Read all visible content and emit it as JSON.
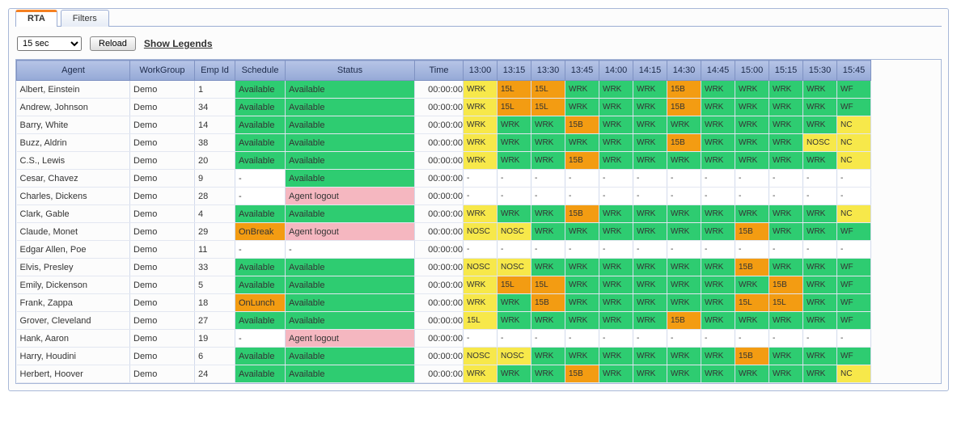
{
  "tabs": {
    "rta": "RTA",
    "filters": "Filters"
  },
  "toolbar": {
    "refresh_value": "15 sec",
    "reload": "Reload",
    "legends": "Show Legends"
  },
  "colors": {
    "green": "#2ecc71",
    "yellow": "#f7e84a",
    "orange": "#f39c12",
    "pink": "#f5b7c0",
    "white": "#ffffff"
  },
  "columns": {
    "agent": "Agent",
    "workgroup": "WorkGroup",
    "emp": "Emp Id",
    "schedule": "Schedule",
    "status": "Status",
    "time": "Time",
    "slots": [
      "13:00",
      "13:15",
      "13:30",
      "13:45",
      "14:00",
      "14:15",
      "14:30",
      "14:45",
      "15:00",
      "15:15",
      "15:30",
      "15:45"
    ]
  },
  "status_map": {
    "avail": {
      "text": "Available",
      "cls": "c-green"
    },
    "break": {
      "text": "OnBreak",
      "cls": "c-orange"
    },
    "lunch": {
      "text": "OnLunch",
      "cls": "c-orange"
    },
    "logout": {
      "text": "Agent logout",
      "cls": "c-pink"
    },
    "dash": {
      "text": "-",
      "cls": "c-white"
    }
  },
  "slot_map": {
    "W": {
      "text": "WRK",
      "cls": "c-green"
    },
    "Wy": {
      "text": "WRK",
      "cls": "c-yellow"
    },
    "Wp": {
      "text": "WF",
      "cls": "c-green"
    },
    "L": {
      "text": "15L",
      "cls": "c-orange"
    },
    "Ly": {
      "text": "15L",
      "cls": "c-yellow"
    },
    "B": {
      "text": "15B",
      "cls": "c-orange"
    },
    "N": {
      "text": "NOSC",
      "cls": "c-yellow"
    },
    "NC": {
      "text": "NC",
      "cls": "c-yellow"
    },
    "D": {
      "text": "-",
      "cls": "c-white"
    }
  },
  "rows": [
    {
      "agent": "Albert, Einstein",
      "wg": "Demo",
      "emp": "1",
      "sched": "avail",
      "status": "avail",
      "time": "00:00:00",
      "slots": [
        "Wy",
        "L",
        "L",
        "W",
        "W",
        "W",
        "B",
        "W",
        "W",
        "W",
        "W",
        "Wp"
      ]
    },
    {
      "agent": "Andrew, Johnson",
      "wg": "Demo",
      "emp": "34",
      "sched": "avail",
      "status": "avail",
      "time": "00:00:00",
      "slots": [
        "Wy",
        "L",
        "L",
        "W",
        "W",
        "W",
        "B",
        "W",
        "W",
        "W",
        "W",
        "Wp"
      ]
    },
    {
      "agent": "Barry, White",
      "wg": "Demo",
      "emp": "14",
      "sched": "avail",
      "status": "avail",
      "time": "00:00:00",
      "slots": [
        "Wy",
        "W",
        "W",
        "B",
        "W",
        "W",
        "W",
        "W",
        "W",
        "W",
        "W",
        "NC"
      ]
    },
    {
      "agent": "Buzz, Aldrin",
      "wg": "Demo",
      "emp": "38",
      "sched": "avail",
      "status": "avail",
      "time": "00:00:00",
      "slots": [
        "Wy",
        "W",
        "W",
        "W",
        "W",
        "W",
        "B",
        "W",
        "W",
        "W",
        "N",
        "NC"
      ]
    },
    {
      "agent": "C.S., Lewis",
      "wg": "Demo",
      "emp": "20",
      "sched": "avail",
      "status": "avail",
      "time": "00:00:00",
      "slots": [
        "Wy",
        "W",
        "W",
        "B",
        "W",
        "W",
        "W",
        "W",
        "W",
        "W",
        "W",
        "NC"
      ]
    },
    {
      "agent": "Cesar, Chavez",
      "wg": "Demo",
      "emp": "9",
      "sched": "dash",
      "status": "avail",
      "time": "00:00:00",
      "slots": [
        "D",
        "D",
        "D",
        "D",
        "D",
        "D",
        "D",
        "D",
        "D",
        "D",
        "D",
        "D"
      ]
    },
    {
      "agent": "Charles, Dickens",
      "wg": "Demo",
      "emp": "28",
      "sched": "dash",
      "status": "logout",
      "time": "00:00:00",
      "slots": [
        "D",
        "D",
        "D",
        "D",
        "D",
        "D",
        "D",
        "D",
        "D",
        "D",
        "D",
        "D"
      ]
    },
    {
      "agent": "Clark, Gable",
      "wg": "Demo",
      "emp": "4",
      "sched": "avail",
      "status": "avail",
      "time": "00:00:00",
      "slots": [
        "Wy",
        "W",
        "W",
        "B",
        "W",
        "W",
        "W",
        "W",
        "W",
        "W",
        "W",
        "NC"
      ]
    },
    {
      "agent": "Claude, Monet",
      "wg": "Demo",
      "emp": "29",
      "sched": "break",
      "status": "logout",
      "time": "00:00:00",
      "slots": [
        "N",
        "N",
        "W",
        "W",
        "W",
        "W",
        "W",
        "W",
        "B",
        "W",
        "W",
        "Wp"
      ]
    },
    {
      "agent": "Edgar Allen, Poe",
      "wg": "Demo",
      "emp": "11",
      "sched": "dash",
      "status": "dash",
      "time": "00:00:00",
      "slots": [
        "D",
        "D",
        "D",
        "D",
        "D",
        "D",
        "D",
        "D",
        "D",
        "D",
        "D",
        "D"
      ]
    },
    {
      "agent": "Elvis, Presley",
      "wg": "Demo",
      "emp": "33",
      "sched": "avail",
      "status": "avail",
      "time": "00:00:00",
      "slots": [
        "N",
        "N",
        "W",
        "W",
        "W",
        "W",
        "W",
        "W",
        "B",
        "W",
        "W",
        "Wp"
      ]
    },
    {
      "agent": "Emily, Dickenson",
      "wg": "Demo",
      "emp": "5",
      "sched": "avail",
      "status": "avail",
      "time": "00:00:00",
      "slots": [
        "Wy",
        "L",
        "L",
        "W",
        "W",
        "W",
        "W",
        "W",
        "W",
        "B",
        "W",
        "Wp"
      ]
    },
    {
      "agent": "Frank, Zappa",
      "wg": "Demo",
      "emp": "18",
      "sched": "lunch",
      "status": "avail",
      "time": "00:00:00",
      "slots": [
        "Wy",
        "W",
        "B",
        "W",
        "W",
        "W",
        "W",
        "W",
        "L",
        "L",
        "W",
        "Wp"
      ]
    },
    {
      "agent": "Grover, Cleveland",
      "wg": "Demo",
      "emp": "27",
      "sched": "avail",
      "status": "avail",
      "time": "00:00:00",
      "slots": [
        "Ly",
        "W",
        "W",
        "W",
        "W",
        "W",
        "B",
        "W",
        "W",
        "W",
        "W",
        "Wp"
      ]
    },
    {
      "agent": "Hank, Aaron",
      "wg": "Demo",
      "emp": "19",
      "sched": "dash",
      "status": "logout",
      "time": "00:00:00",
      "slots": [
        "D",
        "D",
        "D",
        "D",
        "D",
        "D",
        "D",
        "D",
        "D",
        "D",
        "D",
        "D"
      ]
    },
    {
      "agent": "Harry, Houdini",
      "wg": "Demo",
      "emp": "6",
      "sched": "avail",
      "status": "avail",
      "time": "00:00:00",
      "slots": [
        "N",
        "N",
        "W",
        "W",
        "W",
        "W",
        "W",
        "W",
        "B",
        "W",
        "W",
        "Wp"
      ]
    },
    {
      "agent": "Herbert, Hoover",
      "wg": "Demo",
      "emp": "24",
      "sched": "avail",
      "status": "avail",
      "time": "00:00:00",
      "slots": [
        "Wy",
        "W",
        "W",
        "B",
        "W",
        "W",
        "W",
        "W",
        "W",
        "W",
        "W",
        "NC"
      ]
    }
  ]
}
